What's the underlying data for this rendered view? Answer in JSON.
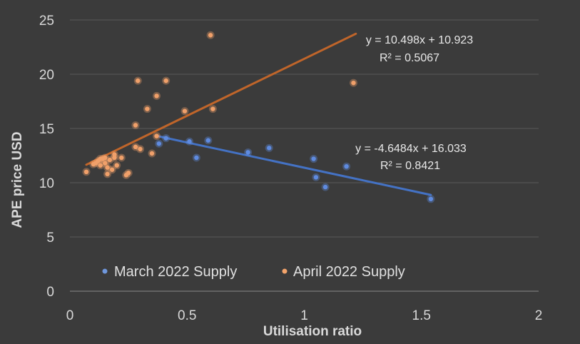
{
  "chart_data": {
    "type": "scatter",
    "xlabel": "Utilisation ratio",
    "ylabel": "APE price USD",
    "xlim": [
      0,
      2
    ],
    "ylim": [
      0,
      25
    ],
    "x_ticks": [
      "0",
      "0.5",
      "1",
      "1.5",
      "2"
    ],
    "y_ticks": [
      "0",
      "5",
      "10",
      "15",
      "20",
      "25"
    ],
    "grid": "horizontal",
    "legend_position": "bottom-inside",
    "series": [
      {
        "name": "March 2022 Supply",
        "color": "#4472c4",
        "points": [
          [
            0.38,
            13.6
          ],
          [
            0.41,
            14.1
          ],
          [
            0.51,
            13.8
          ],
          [
            0.54,
            12.3
          ],
          [
            0.59,
            13.9
          ],
          [
            0.76,
            12.8
          ],
          [
            0.85,
            13.2
          ],
          [
            1.04,
            12.2
          ],
          [
            1.05,
            10.5
          ],
          [
            1.09,
            9.6
          ],
          [
            1.18,
            11.5
          ],
          [
            1.54,
            8.5
          ]
        ],
        "trendline": {
          "slope": -4.6484,
          "intercept": 16.033,
          "x_range": [
            0.38,
            1.54
          ],
          "equation": "y = -4.6484x + 16.033",
          "r2": "R² = 0.8421"
        }
      },
      {
        "name": "April 2022 Supply",
        "color": "#ed7d31",
        "points": [
          [
            0.07,
            11.0
          ],
          [
            0.1,
            11.7
          ],
          [
            0.11,
            11.8
          ],
          [
            0.12,
            12.0
          ],
          [
            0.13,
            11.6
          ],
          [
            0.13,
            12.2
          ],
          [
            0.14,
            12.2
          ],
          [
            0.15,
            11.8
          ],
          [
            0.15,
            12.3
          ],
          [
            0.16,
            11.4
          ],
          [
            0.16,
            10.8
          ],
          [
            0.17,
            12.1
          ],
          [
            0.18,
            11.2
          ],
          [
            0.19,
            12.6
          ],
          [
            0.19,
            12.3
          ],
          [
            0.2,
            11.6
          ],
          [
            0.22,
            12.3
          ],
          [
            0.24,
            10.7
          ],
          [
            0.25,
            10.9
          ],
          [
            0.28,
            15.3
          ],
          [
            0.29,
            19.4
          ],
          [
            0.28,
            13.3
          ],
          [
            0.3,
            13.1
          ],
          [
            0.33,
            16.8
          ],
          [
            0.35,
            12.7
          ],
          [
            0.37,
            14.3
          ],
          [
            0.37,
            18.0
          ],
          [
            0.41,
            19.4
          ],
          [
            0.49,
            16.6
          ],
          [
            0.6,
            23.6
          ],
          [
            0.61,
            16.8
          ],
          [
            1.21,
            19.2
          ]
        ],
        "trendline": {
          "slope": 10.498,
          "intercept": 10.923,
          "x_range": [
            0.07,
            1.22
          ],
          "equation": "y = 10.498x + 10.923",
          "r2": "R² = 0.5067"
        }
      }
    ]
  }
}
